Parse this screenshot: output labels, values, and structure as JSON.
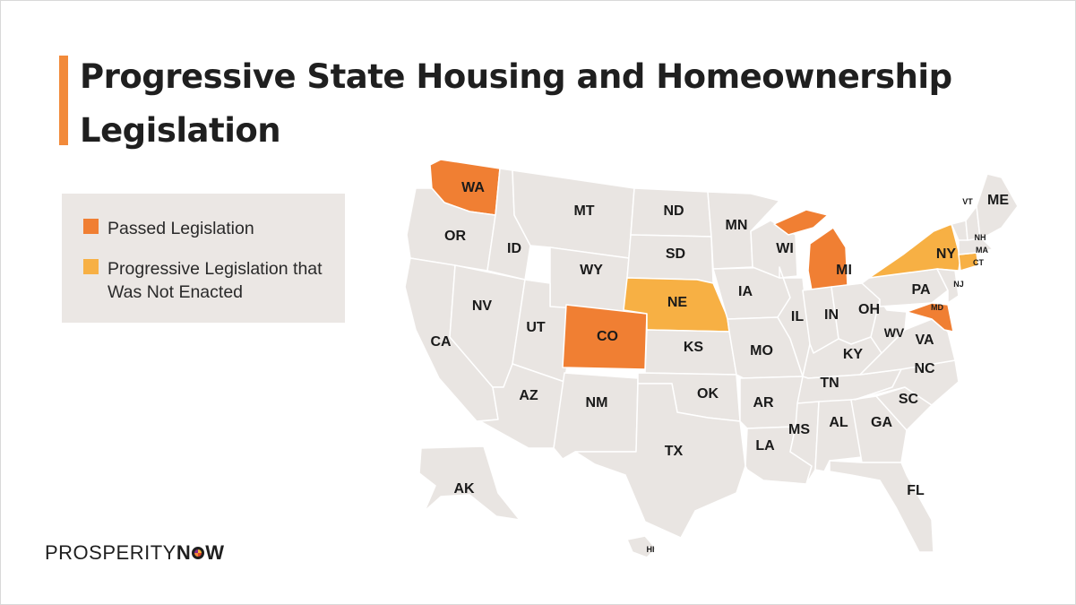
{
  "title": "Progressive State Housing and Homeownership Legislation",
  "legend": {
    "items": [
      {
        "label": "Passed Legislation",
        "color": "#f07f33"
      },
      {
        "label": "Progressive Legislation that Was Not Enacted",
        "color": "#f7b044"
      }
    ]
  },
  "colors": {
    "default_state": "#e9e5e2",
    "border": "#ffffff",
    "accent_bar": "#f28a3a"
  },
  "states": [
    {
      "code": "WA",
      "status": "passed"
    },
    {
      "code": "OR",
      "status": "none"
    },
    {
      "code": "CA",
      "status": "none"
    },
    {
      "code": "ID",
      "status": "none"
    },
    {
      "code": "NV",
      "status": "none"
    },
    {
      "code": "MT",
      "status": "none"
    },
    {
      "code": "WY",
      "status": "none"
    },
    {
      "code": "UT",
      "status": "none"
    },
    {
      "code": "AZ",
      "status": "none"
    },
    {
      "code": "CO",
      "status": "passed"
    },
    {
      "code": "NM",
      "status": "none"
    },
    {
      "code": "ND",
      "status": "none"
    },
    {
      "code": "SD",
      "status": "none"
    },
    {
      "code": "NE",
      "status": "not_enacted"
    },
    {
      "code": "KS",
      "status": "none"
    },
    {
      "code": "OK",
      "status": "none"
    },
    {
      "code": "TX",
      "status": "none"
    },
    {
      "code": "MN",
      "status": "none"
    },
    {
      "code": "IA",
      "status": "none"
    },
    {
      "code": "MO",
      "status": "none"
    },
    {
      "code": "AR",
      "status": "none"
    },
    {
      "code": "LA",
      "status": "none"
    },
    {
      "code": "WI",
      "status": "none"
    },
    {
      "code": "IL",
      "status": "none"
    },
    {
      "code": "MI",
      "status": "passed"
    },
    {
      "code": "IN",
      "status": "none"
    },
    {
      "code": "OH",
      "status": "none"
    },
    {
      "code": "KY",
      "status": "none"
    },
    {
      "code": "TN",
      "status": "none"
    },
    {
      "code": "MS",
      "status": "none"
    },
    {
      "code": "AL",
      "status": "none"
    },
    {
      "code": "GA",
      "status": "none"
    },
    {
      "code": "FL",
      "status": "none"
    },
    {
      "code": "SC",
      "status": "none"
    },
    {
      "code": "NC",
      "status": "none"
    },
    {
      "code": "VA",
      "status": "none"
    },
    {
      "code": "WV",
      "status": "none"
    },
    {
      "code": "PA",
      "status": "none"
    },
    {
      "code": "NY",
      "status": "not_enacted"
    },
    {
      "code": "NJ",
      "status": "none"
    },
    {
      "code": "MD",
      "status": "passed"
    },
    {
      "code": "CT",
      "status": "not_enacted"
    },
    {
      "code": "MA",
      "status": "none"
    },
    {
      "code": "VT",
      "status": "none"
    },
    {
      "code": "NH",
      "status": "none"
    },
    {
      "code": "ME",
      "status": "none"
    },
    {
      "code": "AK",
      "status": "none"
    },
    {
      "code": "HI",
      "status": "none"
    }
  ],
  "logo": {
    "text_prefix": "PROSPERITY",
    "text_suffix": "NOW"
  }
}
